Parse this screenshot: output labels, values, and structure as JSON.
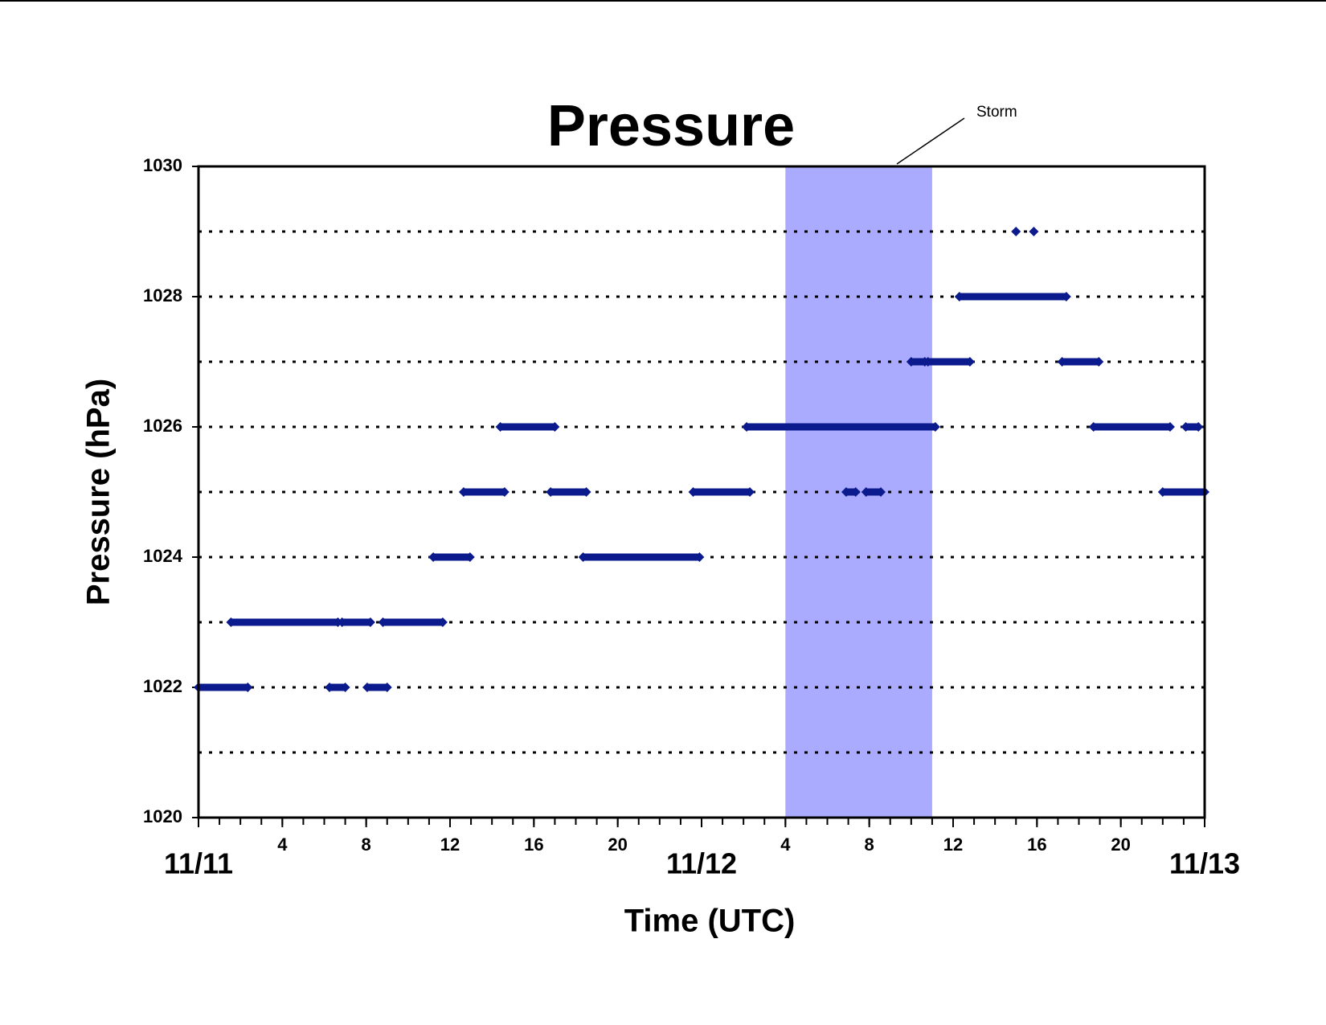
{
  "chart_data": {
    "type": "line",
    "title": "Pressure",
    "x_label": "Time (UTC)",
    "y_label": "Pressure (hPa)",
    "xlim": [
      0,
      48
    ],
    "xticks": [
      {
        "value": 0,
        "label": "11/11"
      },
      4,
      8,
      12,
      16,
      20,
      {
        "value": 24,
        "label": "11/12"
      },
      {
        "value": 28,
        "label": "4"
      },
      {
        "value": 32,
        "label": "8"
      },
      {
        "value": 36,
        "label": "12"
      },
      {
        "value": 40,
        "label": "16"
      },
      {
        "value": 44,
        "label": "20"
      },
      {
        "value": 48,
        "label": "11/13"
      }
    ],
    "x_minor_tick_interval": 1,
    "ylim": [
      1020,
      1030
    ],
    "yticks": [
      1020,
      1022,
      1024,
      1026,
      1028,
      1030
    ],
    "grid_lines": [
      1021,
      1022,
      1023,
      1024,
      1025,
      1026,
      1027,
      1028,
      1029
    ],
    "storm": {
      "label": "Storm",
      "xrange": [
        28,
        35
      ],
      "color": "#aaaaff"
    },
    "series": [
      {
        "name": "Pressure",
        "color": "#0b1a8c",
        "x": [
          0,
          2.35,
          null,
          1.55,
          6.65,
          null,
          6.25,
          7.0,
          null,
          6.85,
          8.2,
          null,
          8.05,
          9.0,
          null,
          8.8,
          11.65,
          null,
          11.2,
          12.95,
          null,
          12.65,
          14.6,
          null,
          14.4,
          17.0,
          null,
          16.8,
          18.5,
          null,
          18.35,
          23.9,
          null,
          23.6,
          26.3,
          null,
          26.15,
          35.15,
          null,
          30.9,
          31.35,
          null,
          31.85,
          32.55,
          null,
          34.0,
          34.65,
          null,
          34.8,
          36.8,
          null,
          36.3,
          41.4,
          null,
          39.0,
          null,
          39.85,
          null,
          41.2,
          42.95,
          null,
          42.7,
          46.35,
          null,
          46.0,
          48,
          null,
          47.1,
          47.7
        ],
        "values": [
          1022,
          1022,
          null,
          1023,
          1023,
          null,
          1022,
          1022,
          null,
          1023,
          1023,
          null,
          1022,
          1022,
          null,
          1023,
          1023,
          null,
          1024,
          1024,
          null,
          1025,
          1025,
          null,
          1026,
          1026,
          null,
          1025,
          1025,
          null,
          1024,
          1024,
          null,
          1025,
          1025,
          null,
          1026,
          1026,
          null,
          1025,
          1025,
          null,
          1025,
          1025,
          null,
          1027,
          1027,
          null,
          1027,
          1027,
          null,
          1028,
          1028,
          null,
          1029,
          null,
          1029,
          null,
          1027,
          1027,
          null,
          1026,
          1026,
          null,
          1025,
          1025,
          null,
          1026,
          1026
        ]
      }
    ]
  }
}
